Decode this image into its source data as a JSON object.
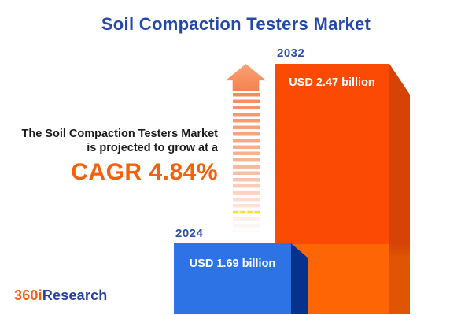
{
  "title": "Soil Compaction Testers Market",
  "annotation": {
    "line1": "The Soil Compaction Testers Market",
    "line2": "is projected to grow at a",
    "cagr": "CAGR 4.84%",
    "cagr_color": "#f4610d",
    "text_color": "#1b1b1b"
  },
  "bars": [
    {
      "year": "2024",
      "label": "USD 1.69 billion",
      "value": 1.69,
      "front_color": "#2e73e6",
      "side_color": "#04328c"
    },
    {
      "year": "2032",
      "label": "USD 2.47 billion",
      "value": 2.47,
      "front_color_top": "#fb4a03",
      "front_color_bottom": "#fd6505",
      "side_color_top": "#d64306",
      "side_color_bottom": "#e05504"
    }
  ],
  "arrow": {
    "icon": "growth-arrow-up",
    "color": "#f58351"
  },
  "logo": {
    "prefix": "360i",
    "suffix": "Research",
    "prefix_color": "#f26212",
    "suffix_color": "#27419e"
  },
  "colors": {
    "title_blue": "#2348a6",
    "year_label_blue": "#2b4fa8",
    "background": "#ffffff"
  },
  "chart_data": {
    "type": "bar",
    "title": "Soil Compaction Testers Market",
    "categories": [
      "2024",
      "2032"
    ],
    "values": [
      1.69,
      2.47
    ],
    "unit": "USD billion",
    "data_labels": [
      "USD 1.69 billion",
      "USD 2.47 billion"
    ],
    "annotation": "The Soil Compaction Testers Market is projected to grow at a CAGR 4.84%",
    "cagr_percent": 4.84,
    "xlabel": "",
    "ylabel": "",
    "grid": false,
    "legend": false,
    "style": "3d-infographic-bars"
  }
}
